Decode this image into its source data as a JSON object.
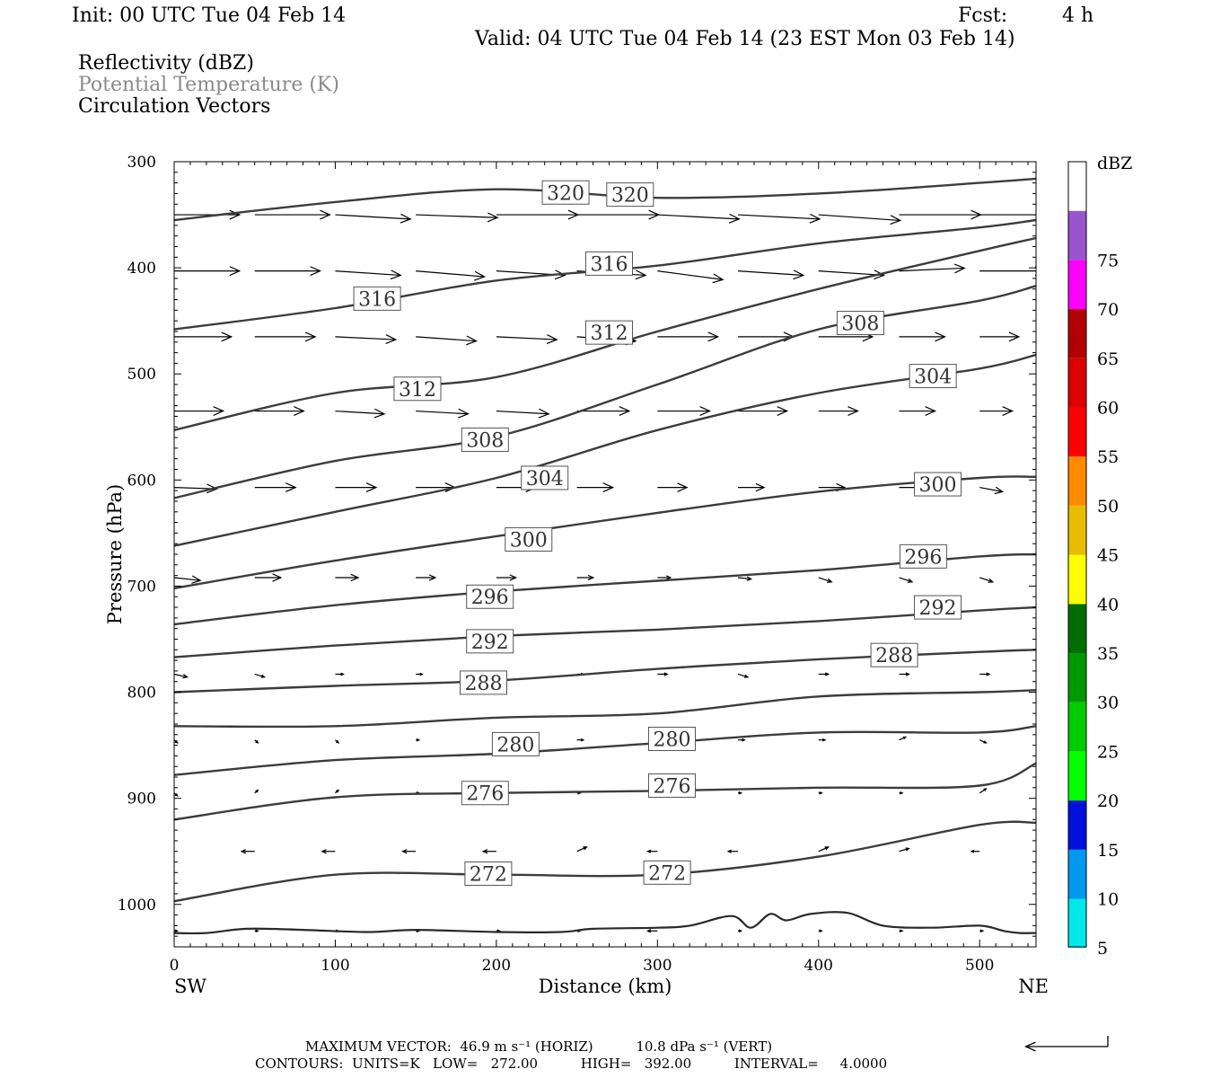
{
  "header": {
    "init": "Init: 00 UTC Tue 04 Feb 14",
    "fcst_label": "Fcst:",
    "fcst_value": "4 h",
    "valid": "Valid: 04 UTC Tue 04 Feb 14 (23 EST Mon 03 Feb 14)",
    "field1": "Reflectivity (dBZ)",
    "field2": "Potential Temperature (K)",
    "field3": "Circulation Vectors"
  },
  "footer": {
    "max_vector": "MAXIMUM VECTOR:  46.9 m s⁻¹ (HORIZ)          10.8 dPa s⁻¹ (VERT)",
    "contours": "CONTOURS:  UNITS=K   LOW=   272.00          HIGH=   392.00          INTERVAL=     4.0000"
  },
  "chart_data": {
    "type": "line",
    "title": "Potential Temperature (K)",
    "xlabel": "Distance (km)",
    "ylabel": "Pressure (hPa)",
    "x_left_label": "SW",
    "x_right_label": "NE",
    "xlim": [
      0,
      535
    ],
    "ylim": [
      300,
      1040
    ],
    "y_inverted": true,
    "x_ticks": [
      0,
      100,
      200,
      300,
      400,
      500
    ],
    "y_ticks": [
      300,
      400,
      500,
      600,
      700,
      800,
      900,
      1000
    ],
    "x": [
      0,
      100,
      200,
      300,
      400,
      500,
      535
    ],
    "series": [
      {
        "name": "320",
        "values": [
          355,
          338,
          326,
          334,
          330,
          320,
          316
        ]
      },
      {
        "name": "316",
        "values": [
          458,
          438,
          412,
          398,
          377,
          362,
          355
        ]
      },
      {
        "name": "312",
        "values": [
          553,
          518,
          503,
          460,
          420,
          384,
          372
        ]
      },
      {
        "name": "308",
        "values": [
          617,
          582,
          559,
          510,
          458,
          431,
          417
        ]
      },
      {
        "name": "304",
        "values": [
          662,
          630,
          598,
          553,
          518,
          495,
          482
        ]
      },
      {
        "name": "300",
        "values": [
          702,
          676,
          653,
          631,
          611,
          598,
          597
        ]
      },
      {
        "name": "296",
        "values": [
          736,
          718,
          705,
          695,
          685,
          672,
          670
        ]
      },
      {
        "name": "292",
        "values": [
          767,
          756,
          747,
          741,
          733,
          723,
          720
        ]
      },
      {
        "name": "288",
        "values": [
          800,
          794,
          789,
          778,
          769,
          762,
          760
        ]
      },
      {
        "name": "284",
        "values": [
          832,
          832,
          824,
          820,
          804,
          800,
          798
        ]
      },
      {
        "name": "280",
        "values": [
          878,
          864,
          858,
          848,
          838,
          838,
          832
        ]
      },
      {
        "name": "276",
        "values": [
          920,
          899,
          895,
          893,
          890,
          888,
          867
        ]
      },
      {
        "name": "272",
        "values": [
          997,
          972,
          972,
          972,
          955,
          925,
          923
        ]
      }
    ],
    "contour_labels": [
      {
        "text": "320",
        "x": 243,
        "p": 329
      },
      {
        "text": "320",
        "x": 283,
        "p": 331
      },
      {
        "text": "316",
        "x": 126,
        "p": 429
      },
      {
        "text": "316",
        "x": 270,
        "p": 396
      },
      {
        "text": "312",
        "x": 151,
        "p": 514
      },
      {
        "text": "312",
        "x": 270,
        "p": 461
      },
      {
        "text": "308",
        "x": 193,
        "p": 562
      },
      {
        "text": "308",
        "x": 426,
        "p": 452
      },
      {
        "text": "304",
        "x": 230,
        "p": 598
      },
      {
        "text": "304",
        "x": 471,
        "p": 502
      },
      {
        "text": "300",
        "x": 220,
        "p": 656
      },
      {
        "text": "300",
        "x": 474,
        "p": 604
      },
      {
        "text": "296",
        "x": 196,
        "p": 710
      },
      {
        "text": "296",
        "x": 465,
        "p": 672
      },
      {
        "text": "292",
        "x": 196,
        "p": 752
      },
      {
        "text": "292",
        "x": 474,
        "p": 720
      },
      {
        "text": "288",
        "x": 192,
        "p": 791
      },
      {
        "text": "288",
        "x": 447,
        "p": 765
      },
      {
        "text": "280",
        "x": 212,
        "p": 849
      },
      {
        "text": "280",
        "x": 309,
        "p": 844
      },
      {
        "text": "276",
        "x": 193,
        "p": 895
      },
      {
        "text": "276",
        "x": 309,
        "p": 888
      },
      {
        "text": "272",
        "x": 195,
        "p": 971
      },
      {
        "text": "272",
        "x": 306,
        "p": 970
      }
    ],
    "vector_field": {
      "x": [
        0,
        50,
        100,
        150,
        200,
        250,
        300,
        350,
        400,
        450,
        500
      ],
      "levels": [
        {
          "p": 350,
          "u": [
            40,
            46,
            46,
            50,
            50,
            50,
            50,
            50,
            50,
            50,
            50
          ],
          "v": [
            0,
            0,
            3,
            2,
            0,
            0,
            3,
            3,
            4,
            0,
            0
          ]
        },
        {
          "p": 403,
          "u": [
            40,
            40,
            40,
            42,
            42,
            42,
            40,
            40,
            40,
            40,
            40
          ],
          "v": [
            0,
            0,
            3,
            4,
            3,
            3,
            6,
            3,
            3,
            -2,
            0
          ]
        },
        {
          "p": 465,
          "u": [
            35,
            37,
            37,
            37,
            37,
            36,
            37,
            34,
            33,
            28,
            24
          ],
          "v": [
            0,
            0,
            2,
            3,
            2,
            3,
            0,
            0,
            0,
            0,
            0
          ]
        },
        {
          "p": 535,
          "u": [
            30,
            30,
            30,
            32,
            32,
            32,
            32,
            30,
            24,
            22,
            20
          ],
          "v": [
            0,
            0,
            2,
            2,
            2,
            0,
            0,
            0,
            0,
            0,
            0
          ]
        },
        {
          "p": 607,
          "u": [
            26,
            25,
            25,
            24,
            24,
            22,
            18,
            16,
            16,
            14,
            14
          ],
          "v": [
            1,
            0,
            0,
            0,
            0,
            0,
            0,
            0,
            0,
            0,
            3
          ]
        },
        {
          "p": 692,
          "u": [
            16,
            16,
            14,
            12,
            12,
            10,
            8,
            8,
            8,
            8,
            8
          ],
          "v": [
            2,
            0,
            0,
            0,
            0,
            0,
            0,
            1,
            3,
            3,
            3
          ]
        },
        {
          "p": 783,
          "u": [
            8,
            6,
            5,
            4,
            4,
            4,
            6,
            6,
            6,
            6,
            6
          ],
          "v": [
            2,
            2,
            0,
            0,
            0,
            0,
            0,
            2,
            0,
            0,
            0
          ]
        },
        {
          "p": 845,
          "u": [
            2,
            2,
            2,
            2,
            2,
            4,
            4,
            4,
            4,
            4,
            4
          ],
          "v": [
            2,
            2,
            2,
            0,
            0,
            0,
            0,
            0,
            0,
            -2,
            2
          ]
        },
        {
          "p": 895,
          "u": [
            2,
            2,
            2,
            2,
            2,
            2,
            2,
            2,
            2,
            2,
            4
          ],
          "v": [
            2,
            -2,
            -2,
            0,
            0,
            0,
            0,
            0,
            0,
            0,
            -3
          ]
        },
        {
          "p": 950,
          "u": [
            -6,
            -8,
            -8,
            -8,
            -8,
            6,
            -6,
            -6,
            6,
            6,
            -5
          ],
          "v": [
            0,
            0,
            0,
            0,
            0,
            -3,
            0,
            0,
            -3,
            -2,
            0
          ]
        },
        {
          "p": 1025,
          "u": [
            2,
            2,
            2,
            2,
            2,
            2,
            -6,
            2,
            2,
            2,
            2
          ],
          "v": [
            0,
            0,
            0,
            0,
            0,
            0,
            0,
            0,
            0,
            0,
            0
          ]
        }
      ]
    },
    "terrain_p": [
      1027,
      1027,
      1023,
      1024,
      1026,
      1024,
      1026,
      1026,
      1023,
      1022,
      1020,
      1011,
      1022,
      1009,
      1015,
      1009,
      1008,
      1020,
      1022,
      1020,
      1025,
      1027,
      1027
    ],
    "terrain_x": [
      0,
      20,
      45,
      80,
      120,
      150,
      200,
      240,
      260,
      300,
      320,
      346,
      358,
      370,
      380,
      395,
      418,
      440,
      470,
      500,
      515,
      525,
      535
    ]
  },
  "colorbar": {
    "unit": "dBZ",
    "levels": [
      "5",
      "10",
      "15",
      "20",
      "25",
      "30",
      "35",
      "40",
      "45",
      "50",
      "55",
      "60",
      "65",
      "70",
      "75"
    ],
    "colors": [
      "#ffffff",
      "#00e8e8",
      "#0099ee",
      "#0011dd",
      "#00ff00",
      "#00cc00",
      "#009900",
      "#006e00",
      "#ffff00",
      "#e6bd00",
      "#ff8c00",
      "#ff0000",
      "#dd0000",
      "#b00000",
      "#ff00ff",
      "#9955cc",
      "#ffffff"
    ]
  },
  "legend_vector": {
    "u": -46.9,
    "w": 10.8
  }
}
